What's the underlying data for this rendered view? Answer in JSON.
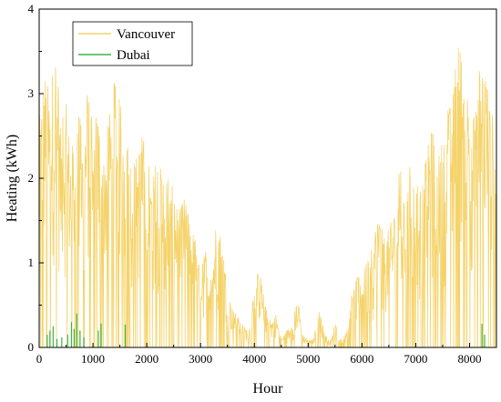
{
  "chart_data": {
    "type": "line",
    "title": "",
    "xlabel": "Hour",
    "ylabel": "Heating (kWh)",
    "xlim": [
      0,
      8500
    ],
    "ylim": [
      0,
      4
    ],
    "x_ticks": [
      0,
      1000,
      2000,
      3000,
      4000,
      5000,
      6000,
      7000,
      8000
    ],
    "y_ticks": [
      0,
      1,
      2,
      3,
      4
    ],
    "grid": false,
    "legend_position": "top-left",
    "series": [
      {
        "name": "Vancouver",
        "color": "#F5D36B",
        "envelope": [
          [
            0,
            2.7
          ],
          [
            100,
            3.3
          ],
          [
            200,
            3.0
          ],
          [
            300,
            3.6
          ],
          [
            400,
            2.6
          ],
          [
            500,
            2.9
          ],
          [
            600,
            2.3
          ],
          [
            700,
            3.0
          ],
          [
            800,
            2.5
          ],
          [
            900,
            3.0
          ],
          [
            1000,
            2.6
          ],
          [
            1100,
            2.8
          ],
          [
            1200,
            2.4
          ],
          [
            1300,
            2.7
          ],
          [
            1400,
            3.15
          ],
          [
            1500,
            2.9
          ],
          [
            1600,
            2.6
          ],
          [
            1700,
            2.3
          ],
          [
            1800,
            2.2
          ],
          [
            1900,
            2.55
          ],
          [
            2000,
            2.3
          ],
          [
            2100,
            1.9
          ],
          [
            2200,
            2.3
          ],
          [
            2300,
            2.0
          ],
          [
            2400,
            2.2
          ],
          [
            2500,
            1.8
          ],
          [
            2600,
            1.6
          ],
          [
            2700,
            1.75
          ],
          [
            2800,
            1.5
          ],
          [
            2900,
            1.3
          ],
          [
            3000,
            0.85
          ],
          [
            3100,
            1.2
          ],
          [
            3200,
            0.9
          ],
          [
            3300,
            1.55
          ],
          [
            3400,
            1.3
          ],
          [
            3500,
            0.7
          ],
          [
            3600,
            0.45
          ],
          [
            3700,
            0.35
          ],
          [
            3800,
            0.25
          ],
          [
            3900,
            0.2
          ],
          [
            4000,
            0.8
          ],
          [
            4100,
            0.9
          ],
          [
            4200,
            0.5
          ],
          [
            4300,
            0.3
          ],
          [
            4400,
            0.4
          ],
          [
            4500,
            0.1
          ],
          [
            4600,
            0.2
          ],
          [
            4700,
            0.25
          ],
          [
            4800,
            0.6
          ],
          [
            4900,
            0.15
          ],
          [
            5000,
            0.08
          ],
          [
            5100,
            0.1
          ],
          [
            5200,
            0.45
          ],
          [
            5300,
            0.2
          ],
          [
            5400,
            0.05
          ],
          [
            5500,
            0.3
          ],
          [
            5600,
            0.1
          ],
          [
            5700,
            0.15
          ],
          [
            5800,
            0.6
          ],
          [
            5900,
            0.8
          ],
          [
            6000,
            0.9
          ],
          [
            6100,
            1.0
          ],
          [
            6200,
            1.2
          ],
          [
            6300,
            1.7
          ],
          [
            6400,
            1.3
          ],
          [
            6500,
            1.4
          ],
          [
            6600,
            1.6
          ],
          [
            6700,
            2.2
          ],
          [
            6800,
            1.6
          ],
          [
            6900,
            2.2
          ],
          [
            7000,
            2.1
          ],
          [
            7100,
            1.8
          ],
          [
            7200,
            2.3
          ],
          [
            7300,
            2.6
          ],
          [
            7400,
            2.2
          ],
          [
            7500,
            2.5
          ],
          [
            7600,
            2.8
          ],
          [
            7700,
            3.0
          ],
          [
            7800,
            3.8
          ],
          [
            7900,
            2.9
          ],
          [
            8000,
            3.2
          ],
          [
            8100,
            2.6
          ],
          [
            8200,
            3.5
          ],
          [
            8300,
            3.4
          ],
          [
            8400,
            2.8
          ],
          [
            8500,
            2.7
          ]
        ]
      },
      {
        "name": "Dubai",
        "color": "#3CB54A",
        "points": [
          [
            150,
            0.15
          ],
          [
            200,
            0.2
          ],
          [
            260,
            0.25
          ],
          [
            330,
            0.1
          ],
          [
            420,
            0.12
          ],
          [
            530,
            0.15
          ],
          [
            600,
            0.3
          ],
          [
            650,
            0.22
          ],
          [
            700,
            0.4
          ],
          [
            760,
            0.2
          ],
          [
            830,
            0.12
          ],
          [
            1100,
            0.2
          ],
          [
            1150,
            0.28
          ],
          [
            1600,
            0.27
          ],
          [
            8230,
            0.28
          ],
          [
            8280,
            0.15
          ]
        ]
      }
    ]
  }
}
